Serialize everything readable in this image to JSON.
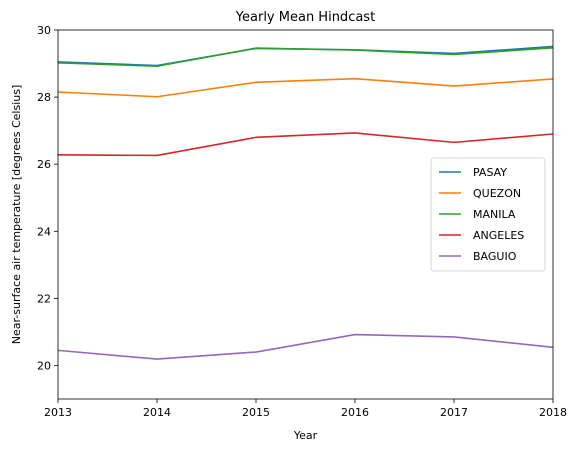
{
  "chart_data": {
    "type": "line",
    "title": "Yearly Mean Hindcast",
    "xlabel": "Year",
    "ylabel": "Near-surface air temperature [degrees Celsius]",
    "x": [
      2013,
      2014,
      2015,
      2016,
      2017,
      2018
    ],
    "xlim": [
      2013,
      2018
    ],
    "ylim": [
      19,
      30
    ],
    "xticks": [
      2013,
      2014,
      2015,
      2016,
      2017,
      2018
    ],
    "yticks": [
      20,
      22,
      24,
      26,
      28,
      30
    ],
    "grid": false,
    "legend_position": "center-right",
    "series": [
      {
        "name": "PASAY",
        "color": "#1f77b4",
        "values": [
          29.05,
          28.94,
          29.45,
          29.41,
          29.3,
          29.51
        ]
      },
      {
        "name": "QUEZON",
        "color": "#ff7f0e",
        "values": [
          28.15,
          28.01,
          28.44,
          28.55,
          28.33,
          28.54
        ]
      },
      {
        "name": "MANILA",
        "color": "#2ca02c",
        "values": [
          29.02,
          28.92,
          29.46,
          29.4,
          29.27,
          29.47
        ]
      },
      {
        "name": "ANGELES",
        "color": "#d62728",
        "values": [
          26.28,
          26.26,
          26.8,
          26.93,
          26.65,
          26.9
        ]
      },
      {
        "name": "BAGUIO",
        "color": "#9467bd",
        "values": [
          20.45,
          20.19,
          20.4,
          20.92,
          20.85,
          20.54
        ]
      }
    ]
  }
}
